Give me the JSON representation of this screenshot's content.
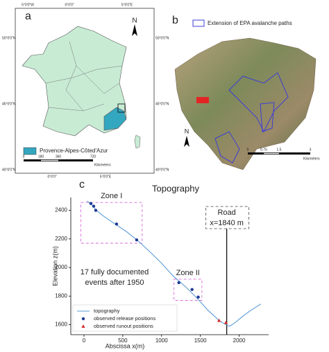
{
  "map_a": {
    "label": "a",
    "north": "N",
    "lat_left": [
      "50°0'0\"N",
      "45°0'0\"N",
      "40°0'0\"N"
    ],
    "lat_right": [
      "50°0'0\"N",
      "45°0'0\"N",
      "40°0'0\"N"
    ],
    "lon_top": [
      "5°0'0\"W",
      "0°0'0\"",
      "5°0'0\"E"
    ],
    "lon_bottom": [
      "0°0'0\"",
      "5°0'0\"E"
    ],
    "legend": "Provence-Alpes-Côted'Azur",
    "scale_ticks": [
      "0",
      "180",
      "360",
      "720"
    ],
    "scale_unit": "Kilometers"
  },
  "map_b": {
    "label": "b",
    "legend": "Extension of EPA avalanche paths",
    "north": "N",
    "scale_ticks": [
      "0",
      "0.75",
      "1.5",
      "3"
    ],
    "scale_unit": "Kilometers"
  },
  "chart_data": {
    "type": "line",
    "panel_label": "c",
    "title": "Topography",
    "x_label": "Abscissa x(m)",
    "y_label": "Elevation z(m)",
    "xlim": [
      -170,
      2380
    ],
    "ylim": [
      1530,
      2490
    ],
    "xticks": [
      0,
      500,
      1000,
      1500,
      2000
    ],
    "yticks": [
      1600,
      1800,
      2000,
      2200,
      2400
    ],
    "series": [
      {
        "name": "topography",
        "color": "#5b9bd5",
        "marker": "none",
        "x": [
          40,
          100,
          150,
          250,
          400,
          550,
          700,
          850,
          1000,
          1150,
          1300,
          1450,
          1600,
          1750,
          1850,
          1880,
          1950,
          2050,
          2150,
          2280
        ],
        "values": [
          2465,
          2440,
          2405,
          2360,
          2305,
          2250,
          2185,
          2110,
          2030,
          1940,
          1870,
          1790,
          1700,
          1625,
          1595,
          1590,
          1615,
          1660,
          1700,
          1745
        ]
      },
      {
        "name": "observed release positions",
        "color": "#1f3a93",
        "marker": "circle",
        "x": [
          89,
          125,
          152,
          420,
          679,
          1223,
          1393,
          1473
        ],
        "values": [
          2448,
          2429,
          2400,
          2304,
          2193,
          1894,
          1846,
          1793
        ]
      },
      {
        "name": "observed runout positions",
        "color": "#d62728",
        "marker": "triangle",
        "x": [
          1741,
          1830
        ],
        "values": [
          1629,
          1614
        ]
      }
    ],
    "zones": [
      {
        "label": "Zone I",
        "x": [
          -40,
          750
        ],
        "y": [
          2170,
          2455
        ]
      },
      {
        "label": "Zone II",
        "x": [
          1160,
          1520
        ],
        "y": [
          1770,
          1918
        ]
      }
    ],
    "road_x": 1840,
    "road_label": [
      "Road",
      "x=1840 m"
    ],
    "annotation": [
      "17 fully documented",
      "events after 1950"
    ]
  }
}
